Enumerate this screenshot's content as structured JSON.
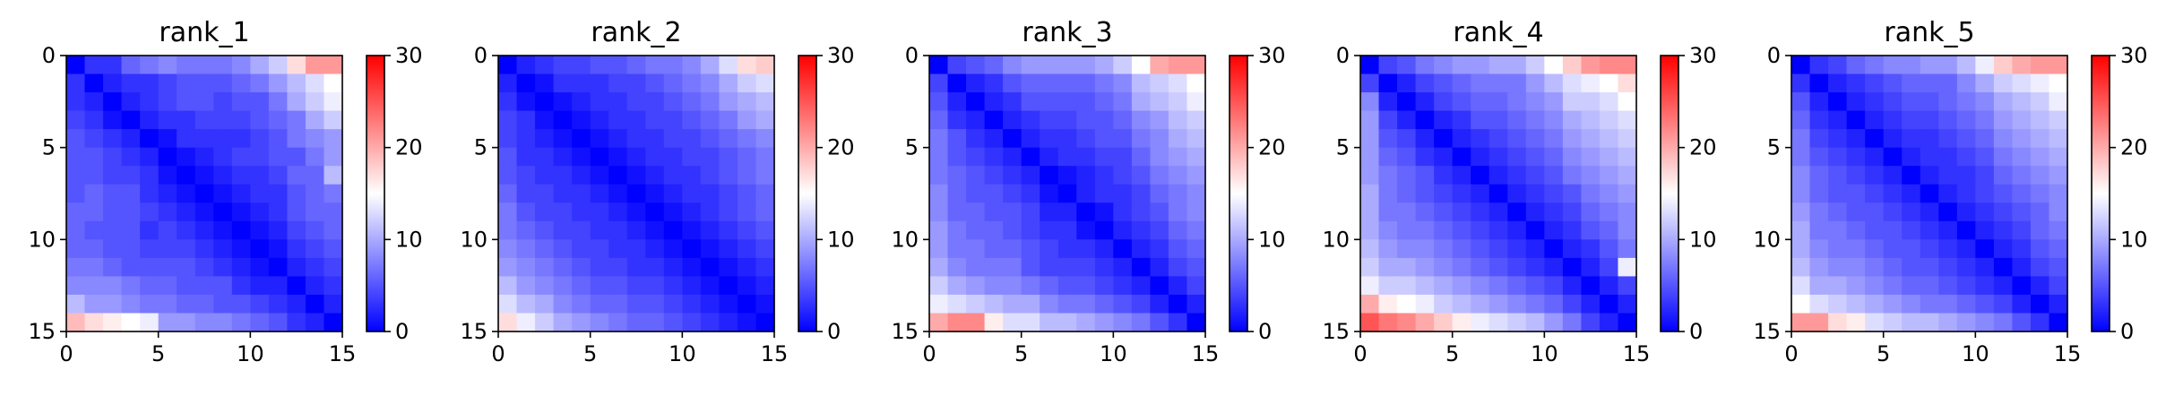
{
  "chart_data": [
    {
      "type": "heatmap",
      "title": "rank_1",
      "xlim": [
        0,
        15
      ],
      "ylim": [
        15,
        0
      ],
      "xticks": [
        "0",
        "5",
        "10",
        "15"
      ],
      "yticks": [
        "0",
        "5",
        "10",
        "15"
      ],
      "colorbar": {
        "range": [
          0,
          30
        ],
        "ticks": [
          "0",
          "10",
          "20",
          "30"
        ],
        "colormap": "bwr"
      },
      "values": [
        [
          0,
          3,
          3,
          6,
          7,
          8,
          7,
          7,
          7,
          8,
          10,
          12,
          17,
          21,
          21
        ],
        [
          3,
          0,
          2,
          3,
          3,
          4,
          5,
          5,
          5,
          6,
          7,
          9,
          11,
          13,
          15
        ],
        [
          3,
          2,
          0,
          2,
          3,
          4,
          5,
          5,
          4,
          5,
          5,
          7,
          10,
          12,
          14
        ],
        [
          4,
          3,
          1,
          0,
          2,
          3,
          3,
          4,
          4,
          4,
          5,
          6,
          7,
          10,
          12
        ],
        [
          5,
          4,
          3,
          2,
          0,
          1,
          3,
          3,
          3,
          3,
          4,
          5,
          7,
          8,
          9
        ],
        [
          5,
          5,
          4,
          3,
          2,
          0,
          1,
          2,
          3,
          4,
          4,
          5,
          5,
          7,
          9
        ],
        [
          5,
          5,
          4,
          4,
          3,
          1,
          0,
          1,
          2,
          3,
          3,
          4,
          6,
          6,
          11
        ],
        [
          5,
          6,
          5,
          5,
          3,
          2,
          1,
          0,
          1,
          2,
          3,
          3,
          5,
          6,
          7
        ],
        [
          6,
          6,
          5,
          5,
          4,
          3,
          2,
          1,
          0,
          1,
          2,
          3,
          5,
          6,
          6
        ],
        [
          6,
          5,
          5,
          5,
          3,
          4,
          3,
          2,
          1,
          0,
          1,
          2,
          4,
          5,
          6
        ],
        [
          6,
          6,
          5,
          5,
          4,
          4,
          4,
          3,
          2,
          1,
          0,
          1,
          3,
          4,
          5
        ],
        [
          7,
          7,
          6,
          5,
          5,
          5,
          5,
          4,
          3,
          2,
          1,
          0,
          2,
          3,
          4
        ],
        [
          8,
          8,
          8,
          7,
          6,
          6,
          5,
          5,
          5,
          3,
          2,
          2,
          0,
          2,
          3
        ],
        [
          11,
          9,
          9,
          8,
          7,
          7,
          6,
          6,
          5,
          5,
          4,
          3,
          2,
          0,
          2
        ],
        [
          19,
          17,
          16,
          15,
          14,
          9,
          9,
          8,
          8,
          7,
          6,
          5,
          3,
          2,
          0
        ]
      ]
    },
    {
      "type": "heatmap",
      "title": "rank_2",
      "xlim": [
        0,
        15
      ],
      "ylim": [
        15,
        0
      ],
      "xticks": [
        "0",
        "5",
        "10",
        "15"
      ],
      "yticks": [
        "0",
        "5",
        "10",
        "15"
      ],
      "colorbar": {
        "range": [
          0,
          30
        ],
        "ticks": [
          "0",
          "10",
          "20",
          "30"
        ],
        "colormap": "bwr"
      },
      "values": [
        [
          0,
          2,
          3,
          4,
          4,
          5,
          5,
          6,
          7,
          7,
          8,
          10,
          13,
          17,
          18
        ],
        [
          2,
          0,
          1,
          3,
          3,
          3,
          4,
          4,
          5,
          6,
          7,
          8,
          10,
          12,
          13
        ],
        [
          3,
          1,
          0,
          1,
          2,
          3,
          3,
          4,
          4,
          5,
          6,
          7,
          9,
          10,
          11
        ],
        [
          4,
          3,
          1,
          0,
          1,
          2,
          3,
          3,
          4,
          4,
          5,
          6,
          7,
          9,
          10
        ],
        [
          4,
          3,
          2,
          1,
          0,
          1,
          2,
          3,
          3,
          4,
          4,
          5,
          6,
          7,
          8
        ],
        [
          5,
          3,
          3,
          2,
          1,
          0,
          1,
          2,
          3,
          3,
          4,
          4,
          5,
          6,
          7
        ],
        [
          5,
          4,
          3,
          3,
          2,
          1,
          0,
          1,
          2,
          3,
          3,
          4,
          5,
          6,
          7
        ],
        [
          6,
          4,
          4,
          3,
          3,
          2,
          1,
          0,
          1,
          2,
          3,
          3,
          4,
          5,
          6
        ],
        [
          7,
          5,
          4,
          4,
          3,
          3,
          2,
          1,
          0,
          1,
          2,
          3,
          4,
          5,
          6
        ],
        [
          7,
          6,
          5,
          4,
          4,
          3,
          3,
          2,
          1,
          0,
          1,
          2,
          3,
          4,
          5
        ],
        [
          8,
          7,
          6,
          5,
          4,
          4,
          3,
          3,
          2,
          1,
          0,
          1,
          2,
          3,
          4
        ],
        [
          9,
          8,
          7,
          6,
          5,
          4,
          4,
          3,
          3,
          2,
          1,
          0,
          1,
          2,
          3
        ],
        [
          11,
          9,
          8,
          7,
          6,
          5,
          5,
          4,
          4,
          3,
          2,
          1,
          0,
          1,
          2
        ],
        [
          13,
          11,
          10,
          8,
          7,
          6,
          6,
          5,
          5,
          4,
          3,
          2,
          1,
          0,
          1
        ],
        [
          17,
          14,
          12,
          10,
          9,
          8,
          7,
          6,
          6,
          5,
          4,
          3,
          2,
          1,
          0
        ]
      ]
    },
    {
      "type": "heatmap",
      "title": "rank_3",
      "xlim": [
        0,
        15
      ],
      "ylim": [
        15,
        0
      ],
      "xticks": [
        "0",
        "5",
        "10",
        "15"
      ],
      "yticks": [
        "0",
        "5",
        "10",
        "15"
      ],
      "colorbar": {
        "range": [
          0,
          30
        ],
        "ticks": [
          "0",
          "10",
          "20",
          "30"
        ],
        "colormap": "bwr"
      },
      "values": [
        [
          0,
          4,
          5,
          6,
          8,
          9,
          9,
          9,
          9,
          10,
          12,
          15,
          20,
          21,
          21
        ],
        [
          4,
          0,
          2,
          3,
          5,
          6,
          6,
          6,
          6,
          7,
          8,
          11,
          12,
          13,
          15
        ],
        [
          5,
          2,
          0,
          2,
          3,
          5,
          5,
          5,
          5,
          6,
          7,
          10,
          11,
          12,
          14
        ],
        [
          6,
          3,
          2,
          0,
          2,
          3,
          4,
          4,
          5,
          5,
          6,
          8,
          9,
          11,
          12
        ],
        [
          7,
          5,
          3,
          2,
          0,
          2,
          3,
          3,
          4,
          5,
          5,
          7,
          8,
          10,
          11
        ],
        [
          7,
          5,
          4,
          3,
          2,
          0,
          2,
          3,
          3,
          4,
          4,
          6,
          8,
          9,
          10
        ],
        [
          7,
          6,
          5,
          4,
          3,
          2,
          0,
          1,
          2,
          3,
          4,
          5,
          7,
          8,
          9
        ],
        [
          8,
          6,
          5,
          5,
          4,
          3,
          1,
          0,
          2,
          3,
          3,
          4,
          6,
          7,
          8
        ],
        [
          8,
          6,
          6,
          5,
          5,
          4,
          2,
          2,
          0,
          1,
          3,
          4,
          5,
          7,
          8
        ],
        [
          9,
          7,
          6,
          6,
          5,
          4,
          3,
          3,
          1,
          0,
          2,
          3,
          4,
          6,
          7
        ],
        [
          9,
          7,
          7,
          6,
          6,
          5,
          4,
          3,
          3,
          2,
          0,
          2,
          3,
          5,
          6
        ],
        [
          10,
          8,
          7,
          7,
          7,
          5,
          4,
          4,
          4,
          3,
          2,
          0,
          2,
          4,
          5
        ],
        [
          12,
          10,
          9,
          8,
          8,
          7,
          6,
          5,
          5,
          4,
          3,
          2,
          0,
          2,
          4
        ],
        [
          14,
          13,
          12,
          11,
          10,
          10,
          8,
          7,
          7,
          6,
          5,
          4,
          2,
          0,
          2
        ],
        [
          20,
          22,
          22,
          16,
          13,
          13,
          11,
          11,
          10,
          9,
          8,
          7,
          5,
          3,
          0
        ]
      ]
    },
    {
      "type": "heatmap",
      "title": "rank_4",
      "xlim": [
        0,
        15
      ],
      "ylim": [
        15,
        0
      ],
      "xticks": [
        "0",
        "5",
        "10",
        "15"
      ],
      "yticks": [
        "0",
        "5",
        "10",
        "15"
      ],
      "colorbar": {
        "range": [
          0,
          30
        ],
        "ticks": [
          "0",
          "10",
          "20",
          "30"
        ],
        "colormap": "bwr"
      },
      "values": [
        [
          0,
          4,
          5,
          7,
          8,
          9,
          9,
          10,
          10,
          12,
          15,
          18,
          21,
          22,
          22
        ],
        [
          4,
          0,
          2,
          4,
          5,
          6,
          7,
          7,
          7,
          9,
          11,
          13,
          14,
          15,
          17
        ],
        [
          8,
          2,
          0,
          2,
          4,
          5,
          6,
          6,
          7,
          8,
          9,
          12,
          12,
          13,
          15
        ],
        [
          9,
          4,
          2,
          0,
          2,
          3,
          5,
          5,
          6,
          7,
          8,
          10,
          11,
          12,
          13
        ],
        [
          9,
          5,
          4,
          2,
          0,
          2,
          3,
          4,
          5,
          6,
          7,
          9,
          10,
          11,
          12
        ],
        [
          9,
          6,
          5,
          3,
          2,
          0,
          2,
          3,
          4,
          5,
          6,
          8,
          9,
          10,
          11
        ],
        [
          9,
          7,
          6,
          5,
          3,
          2,
          0,
          2,
          3,
          4,
          5,
          7,
          8,
          9,
          10
        ],
        [
          10,
          7,
          6,
          5,
          4,
          3,
          2,
          0,
          2,
          3,
          4,
          5,
          7,
          8,
          9
        ],
        [
          10,
          7,
          7,
          6,
          5,
          4,
          3,
          2,
          0,
          2,
          3,
          4,
          6,
          7,
          8
        ],
        [
          10,
          8,
          7,
          7,
          6,
          5,
          4,
          3,
          2,
          0,
          2,
          3,
          5,
          6,
          8
        ],
        [
          11,
          9,
          8,
          8,
          7,
          6,
          5,
          4,
          3,
          2,
          0,
          2,
          3,
          5,
          7
        ],
        [
          12,
          10,
          10,
          9,
          8,
          7,
          6,
          5,
          4,
          3,
          2,
          0,
          2,
          4,
          14
        ],
        [
          14,
          12,
          12,
          11,
          10,
          9,
          8,
          7,
          6,
          5,
          4,
          2,
          0,
          2,
          4
        ],
        [
          20,
          16,
          15,
          14,
          12,
          11,
          10,
          9,
          8,
          7,
          6,
          4,
          2,
          0,
          2
        ],
        [
          25,
          23,
          22,
          20,
          18,
          16,
          14,
          13,
          12,
          11,
          9,
          7,
          4,
          2,
          0
        ]
      ]
    },
    {
      "type": "heatmap",
      "title": "rank_5",
      "xlim": [
        0,
        15
      ],
      "ylim": [
        15,
        0
      ],
      "xticks": [
        "0",
        "5",
        "10",
        "15"
      ],
      "yticks": [
        "0",
        "5",
        "10",
        "15"
      ],
      "colorbar": {
        "range": [
          0,
          30
        ],
        "ticks": [
          "0",
          "10",
          "20",
          "30"
        ],
        "colormap": "bwr"
      },
      "values": [
        [
          0,
          3,
          4,
          6,
          7,
          8,
          8,
          9,
          9,
          11,
          14,
          18,
          20,
          21,
          21
        ],
        [
          3,
          0,
          2,
          3,
          4,
          5,
          6,
          6,
          6,
          8,
          10,
          12,
          13,
          14,
          15
        ],
        [
          5,
          2,
          0,
          2,
          3,
          4,
          5,
          5,
          6,
          7,
          8,
          10,
          11,
          12,
          14
        ],
        [
          6,
          3,
          2,
          0,
          2,
          3,
          4,
          4,
          5,
          6,
          7,
          9,
          10,
          11,
          12
        ],
        [
          7,
          4,
          3,
          2,
          0,
          2,
          3,
          3,
          4,
          5,
          6,
          8,
          9,
          10,
          11
        ],
        [
          7,
          5,
          4,
          3,
          2,
          0,
          2,
          3,
          3,
          4,
          5,
          7,
          8,
          9,
          10
        ],
        [
          8,
          6,
          5,
          4,
          3,
          2,
          0,
          2,
          3,
          3,
          4,
          6,
          7,
          8,
          9
        ],
        [
          8,
          6,
          5,
          5,
          4,
          3,
          2,
          0,
          2,
          3,
          4,
          5,
          6,
          7,
          8
        ],
        [
          9,
          7,
          6,
          5,
          5,
          4,
          3,
          2,
          0,
          2,
          3,
          4,
          5,
          6,
          8
        ],
        [
          10,
          7,
          7,
          6,
          5,
          5,
          4,
          3,
          2,
          0,
          2,
          3,
          4,
          6,
          7
        ],
        [
          10,
          8,
          7,
          7,
          6,
          5,
          5,
          4,
          3,
          2,
          0,
          2,
          3,
          5,
          6
        ],
        [
          11,
          9,
          8,
          8,
          7,
          6,
          5,
          5,
          4,
          3,
          2,
          0,
          2,
          4,
          5
        ],
        [
          13,
          10,
          10,
          9,
          8,
          7,
          6,
          6,
          5,
          4,
          3,
          2,
          0,
          2,
          4
        ],
        [
          15,
          13,
          12,
          11,
          10,
          9,
          8,
          7,
          7,
          6,
          5,
          4,
          2,
          0,
          2
        ],
        [
          21,
          21,
          17,
          16,
          13,
          12,
          11,
          11,
          10,
          9,
          8,
          7,
          5,
          3,
          0
        ]
      ]
    }
  ]
}
